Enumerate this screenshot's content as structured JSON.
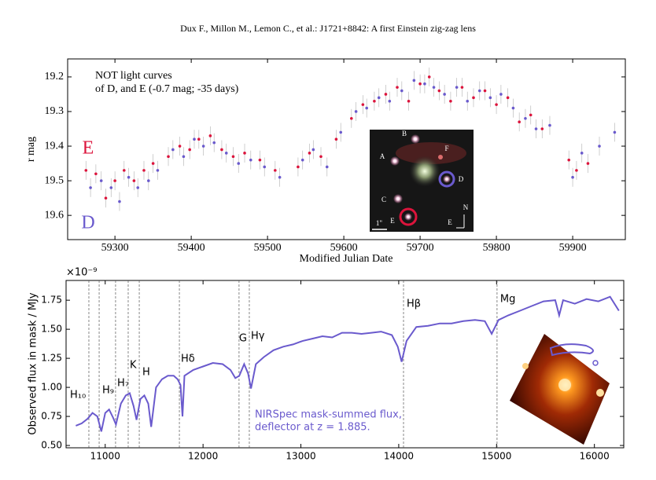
{
  "page_header": "Dux F., Millon M., Lemon C., et al.: J1721+8842: A first Einstein zig-zag lens",
  "chart_data": [
    {
      "type": "scatter",
      "annotation": [
        "NOT light curves",
        "of D, and E (-0.7 mag; -35 days)"
      ],
      "x_label": "Modified Julian Date",
      "y_label": "r mag",
      "xlim": [
        59238,
        59969
      ],
      "xticks": [
        59300,
        59400,
        59500,
        59600,
        59700,
        59800,
        59900
      ],
      "ylim": [
        19.67,
        19.148
      ],
      "yticks": [
        {
          "value": 19.2,
          "label": "19.2"
        },
        {
          "value": 19.3,
          "label": "19.3"
        },
        {
          "value": 19.4,
          "label": "19.4"
        },
        {
          "value": 19.5,
          "label": "19.5"
        },
        {
          "value": 19.6,
          "label": "19.6"
        }
      ],
      "series": [
        {
          "name": "E",
          "color": "#dc143c",
          "x": [
            59262,
            59275,
            59288,
            59300,
            59312,
            59325,
            59338,
            59350,
            59370,
            59385,
            59398,
            59410,
            59425,
            59440,
            59455,
            59470,
            59490,
            59510,
            59540,
            59555,
            59570,
            59590,
            59610,
            59625,
            59640,
            59655,
            59670,
            59685,
            59700,
            59712,
            59725,
            59740,
            59755,
            59770,
            59785,
            59800,
            59815,
            59830,
            59845,
            59860,
            59895,
            59905,
            59920
          ],
          "values": [
            19.47,
            19.48,
            19.55,
            19.5,
            19.47,
            19.5,
            19.47,
            19.45,
            19.43,
            19.4,
            19.41,
            19.38,
            19.37,
            19.41,
            19.43,
            19.42,
            19.44,
            19.47,
            19.46,
            19.42,
            19.43,
            19.38,
            19.32,
            19.28,
            19.27,
            19.25,
            19.23,
            19.27,
            19.22,
            19.2,
            19.24,
            19.27,
            19.23,
            19.26,
            19.24,
            19.28,
            19.26,
            19.33,
            19.31,
            19.35,
            19.44,
            19.47,
            19.45
          ]
        },
        {
          "name": "D",
          "color": "#6a5acd",
          "x": [
            59268,
            59282,
            59295,
            59306,
            59318,
            59330,
            59344,
            59356,
            59376,
            59390,
            59404,
            59416,
            59430,
            59446,
            59462,
            59478,
            59496,
            59516,
            59546,
            59560,
            59578,
            59596,
            59616,
            59630,
            59646,
            59660,
            59676,
            59692,
            59706,
            59718,
            59732,
            59748,
            59762,
            59778,
            59792,
            59806,
            59822,
            59838,
            59852,
            59870,
            59900,
            59912,
            59935,
            59955
          ],
          "values": [
            19.52,
            19.5,
            19.52,
            19.56,
            19.49,
            19.52,
            19.5,
            19.47,
            19.41,
            19.43,
            19.38,
            19.4,
            19.39,
            19.42,
            19.45,
            19.44,
            19.46,
            19.49,
            19.44,
            19.41,
            19.46,
            19.36,
            19.3,
            19.29,
            19.26,
            19.27,
            19.24,
            19.21,
            19.22,
            19.23,
            19.25,
            19.23,
            19.27,
            19.24,
            19.26,
            19.25,
            19.29,
            19.32,
            19.35,
            19.34,
            19.49,
            19.42,
            19.4,
            19.36
          ]
        }
      ],
      "inset_labels": [
        "A",
        "B",
        "C",
        "D",
        "E",
        "F",
        "1\"",
        "N",
        "E"
      ]
    },
    {
      "type": "line",
      "y_label": "Observed flux in mask / MJy",
      "y_scale_label": "×10⁻⁹",
      "annotation": [
        "NIRSpec mask-summed flux,",
        "deflector at z = 1.885."
      ],
      "xlim": [
        10600,
        16300
      ],
      "xticks": [
        11000,
        12000,
        13000,
        14000,
        15000,
        16000
      ],
      "ylim": [
        0.48,
        1.92
      ],
      "yticks": [
        {
          "value": 0.5,
          "label": "0.50"
        },
        0.75,
        {
          "value": 1.0,
          "label": "1.00"
        },
        1.25,
        {
          "value": 1.5,
          "label": "1.50"
        },
        1.75
      ],
      "lines": [
        {
          "label": "H₁₀",
          "x": 10833
        },
        {
          "label": "H₉",
          "x": 10938
        },
        {
          "label": "H₇",
          "x": 11106
        },
        {
          "label": "K",
          "x": 11235
        },
        {
          "label": "H",
          "x": 11348
        },
        {
          "label": "Hδ",
          "x": 11758
        },
        {
          "label": "G",
          "x": 12368
        },
        {
          "label": "Hγ",
          "x": 12473
        },
        {
          "label": "Hβ",
          "x": 14049
        },
        {
          "label": "Mg",
          "x": 15005
        }
      ],
      "series": [
        {
          "color": "#6a5acd",
          "x": [
            10700,
            10760,
            10820,
            10870,
            10920,
            10960,
            11000,
            11040,
            11080,
            11110,
            11160,
            11210,
            11250,
            11290,
            11320,
            11360,
            11400,
            11440,
            11470,
            11520,
            11580,
            11640,
            11700,
            11740,
            11770,
            11790,
            11810,
            11900,
            12000,
            12100,
            12200,
            12280,
            12330,
            12370,
            12420,
            12460,
            12490,
            12540,
            12620,
            12720,
            12820,
            12920,
            13020,
            13120,
            13220,
            13320,
            13420,
            13520,
            13620,
            13720,
            13820,
            13930,
            13990,
            14030,
            14080,
            14180,
            14300,
            14420,
            14540,
            14660,
            14780,
            14880,
            14950,
            15020,
            15120,
            15240,
            15360,
            15480,
            15600,
            15640,
            15680,
            15800,
            15920,
            16040,
            16160,
            16250
          ],
          "values": [
            0.67,
            0.69,
            0.73,
            0.78,
            0.75,
            0.62,
            0.78,
            0.81,
            0.74,
            0.68,
            0.86,
            0.93,
            0.95,
            0.84,
            0.72,
            0.9,
            0.93,
            0.86,
            0.66,
            1.0,
            1.07,
            1.1,
            1.1,
            1.07,
            1.02,
            0.75,
            1.1,
            1.15,
            1.18,
            1.21,
            1.2,
            1.15,
            1.08,
            1.1,
            1.2,
            1.12,
            0.99,
            1.2,
            1.26,
            1.32,
            1.35,
            1.37,
            1.4,
            1.42,
            1.44,
            1.43,
            1.47,
            1.47,
            1.46,
            1.47,
            1.48,
            1.45,
            1.35,
            1.22,
            1.4,
            1.52,
            1.53,
            1.55,
            1.55,
            1.57,
            1.58,
            1.57,
            1.46,
            1.58,
            1.62,
            1.66,
            1.7,
            1.74,
            1.75,
            1.62,
            1.75,
            1.72,
            1.76,
            1.74,
            1.78,
            1.66
          ]
        }
      ]
    }
  ]
}
